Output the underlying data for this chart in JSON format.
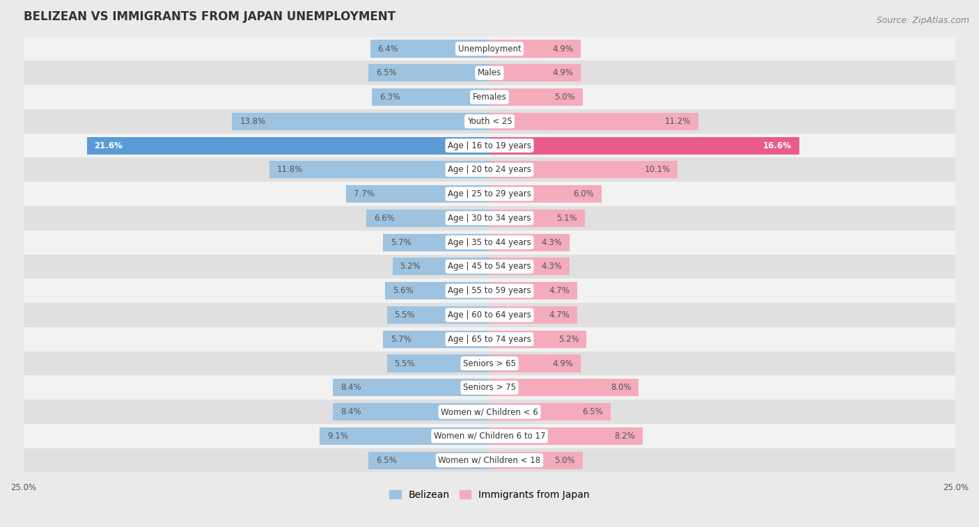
{
  "title": "BELIZEAN VS IMMIGRANTS FROM JAPAN UNEMPLOYMENT",
  "source": "Source: ZipAtlas.com",
  "categories": [
    "Unemployment",
    "Males",
    "Females",
    "Youth < 25",
    "Age | 16 to 19 years",
    "Age | 20 to 24 years",
    "Age | 25 to 29 years",
    "Age | 30 to 34 years",
    "Age | 35 to 44 years",
    "Age | 45 to 54 years",
    "Age | 55 to 59 years",
    "Age | 60 to 64 years",
    "Age | 65 to 74 years",
    "Seniors > 65",
    "Seniors > 75",
    "Women w/ Children < 6",
    "Women w/ Children 6 to 17",
    "Women w/ Children < 18"
  ],
  "belizean": [
    6.4,
    6.5,
    6.3,
    13.8,
    21.6,
    11.8,
    7.7,
    6.6,
    5.7,
    5.2,
    5.6,
    5.5,
    5.7,
    5.5,
    8.4,
    8.4,
    9.1,
    6.5
  ],
  "japan": [
    4.9,
    4.9,
    5.0,
    11.2,
    16.6,
    10.1,
    6.0,
    5.1,
    4.3,
    4.3,
    4.7,
    4.7,
    5.2,
    4.9,
    8.0,
    6.5,
    8.2,
    5.0
  ],
  "belizean_color": "#9DC3E0",
  "japan_color": "#F4ABBC",
  "highlight_belizean_color": "#5B9BD5",
  "highlight_japan_color": "#E95C8A",
  "bg_color": "#EAEAEA",
  "row_color_light": "#F2F2F2",
  "row_color_dark": "#E0E0E0",
  "x_max": 25.0,
  "label_fontsize": 8.5,
  "cat_fontsize": 8.5,
  "title_fontsize": 12,
  "legend_fontsize": 10,
  "source_fontsize": 9
}
